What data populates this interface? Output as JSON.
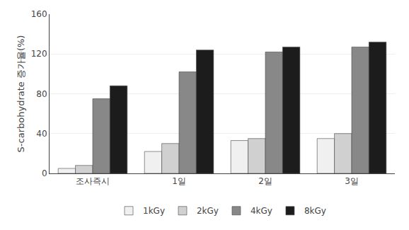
{
  "chart_data": {
    "type": "bar",
    "ylabel": "S-carbohydrate 증가율(%)",
    "categories": [
      "조사즉시",
      "1일",
      "2일",
      "3일"
    ],
    "series": [
      {
        "name": "1kGy",
        "color": "#f0f0f0",
        "values": [
          5,
          22,
          33,
          35
        ]
      },
      {
        "name": "2kGy",
        "color": "#d0d0d0",
        "values": [
          8,
          30,
          35,
          40
        ]
      },
      {
        "name": "4kGy",
        "color": "#888888",
        "values": [
          75,
          102,
          122,
          127
        ]
      },
      {
        "name": "8kGy",
        "color": "#1c1c1c",
        "values": [
          88,
          124,
          127,
          132
        ]
      }
    ],
    "ylim": [
      0,
      160
    ],
    "yticks": [
      0,
      40,
      80,
      120,
      160
    ],
    "grid": true,
    "legend": "bottom"
  }
}
